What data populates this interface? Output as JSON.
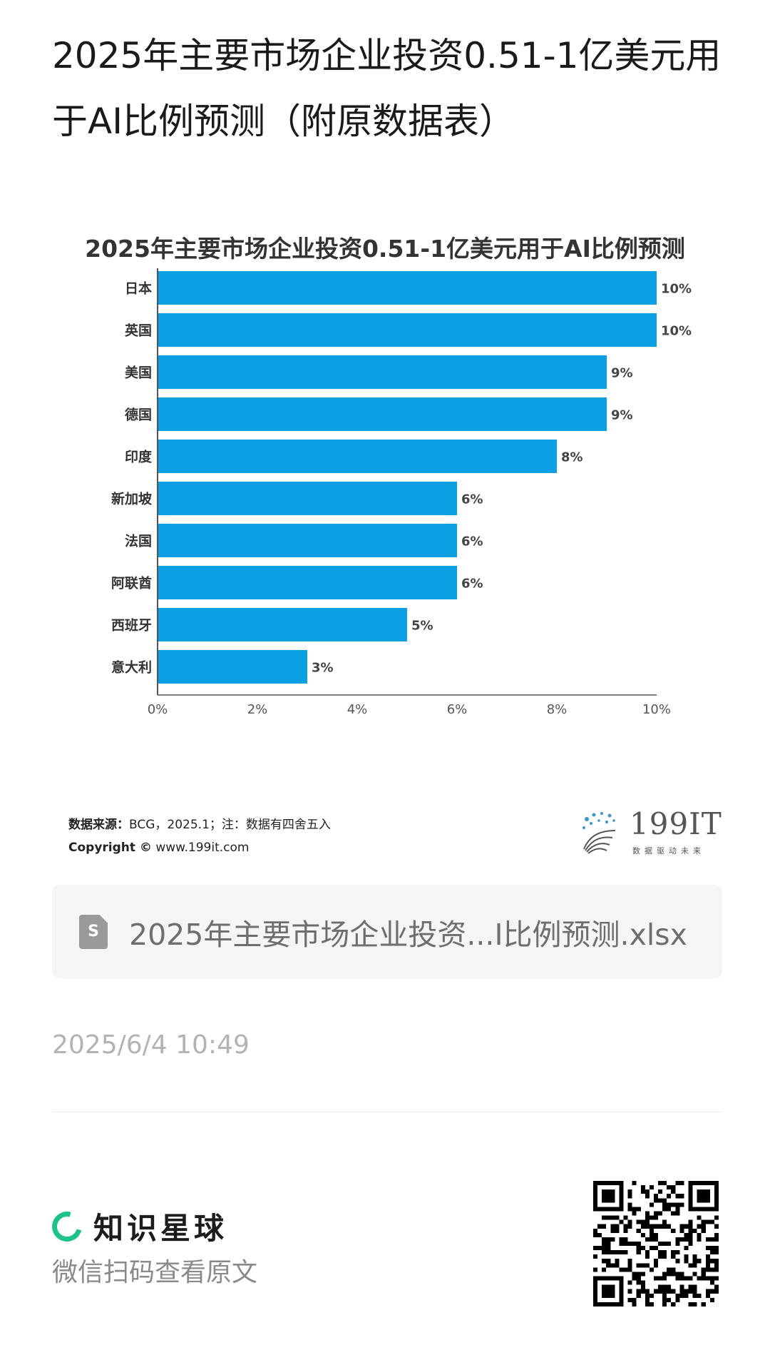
{
  "post": {
    "title": "2025年主要市场企业投资0.51-1亿美元用于AI比例预测（附原数据表）"
  },
  "chart_data": {
    "type": "bar",
    "orientation": "horizontal",
    "title": "2025年主要市场企业投资0.51-1亿美元用于AI比例预测",
    "categories": [
      "日本",
      "英国",
      "美国",
      "德国",
      "印度",
      "新加坡",
      "法国",
      "阿联酋",
      "西班牙",
      "意大利"
    ],
    "values": [
      10,
      10,
      9,
      9,
      8,
      6,
      6,
      6,
      5,
      3
    ],
    "value_labels": [
      "10%",
      "10%",
      "9%",
      "9%",
      "8%",
      "6%",
      "6%",
      "6%",
      "5%",
      "3%"
    ],
    "xlim": [
      0,
      10
    ],
    "x_ticks": [
      "0%",
      "2%",
      "4%",
      "6%",
      "8%",
      "10%"
    ],
    "x_tick_values": [
      0,
      2,
      4,
      6,
      8,
      10
    ],
    "bar_color": "#0b9fe3",
    "grid": false,
    "legend": "none"
  },
  "source": {
    "label": "数据来源：",
    "text": "BCG，2025.1；注：数据有四舍五入",
    "copyright_label": "Copyright ©",
    "copyright_text": "www.199it.com"
  },
  "brand": {
    "name": "199IT",
    "slogan": "数据驱动未来",
    "icon": "dandelion-logo-icon"
  },
  "attachment": {
    "icon": "spreadsheet-file-icon",
    "icon_letter": "S",
    "file_name": "2025年主要市场企业投资...I比例预测.xlsx"
  },
  "timestamp": "2025/6/4 10:49",
  "footer": {
    "app_name": "知识星球",
    "caption": "微信扫码查看原文",
    "logo_icon": "knowledge-planet-logo-icon",
    "qr_icon": "qr-code-icon",
    "accent_color": "#1ec28b"
  }
}
